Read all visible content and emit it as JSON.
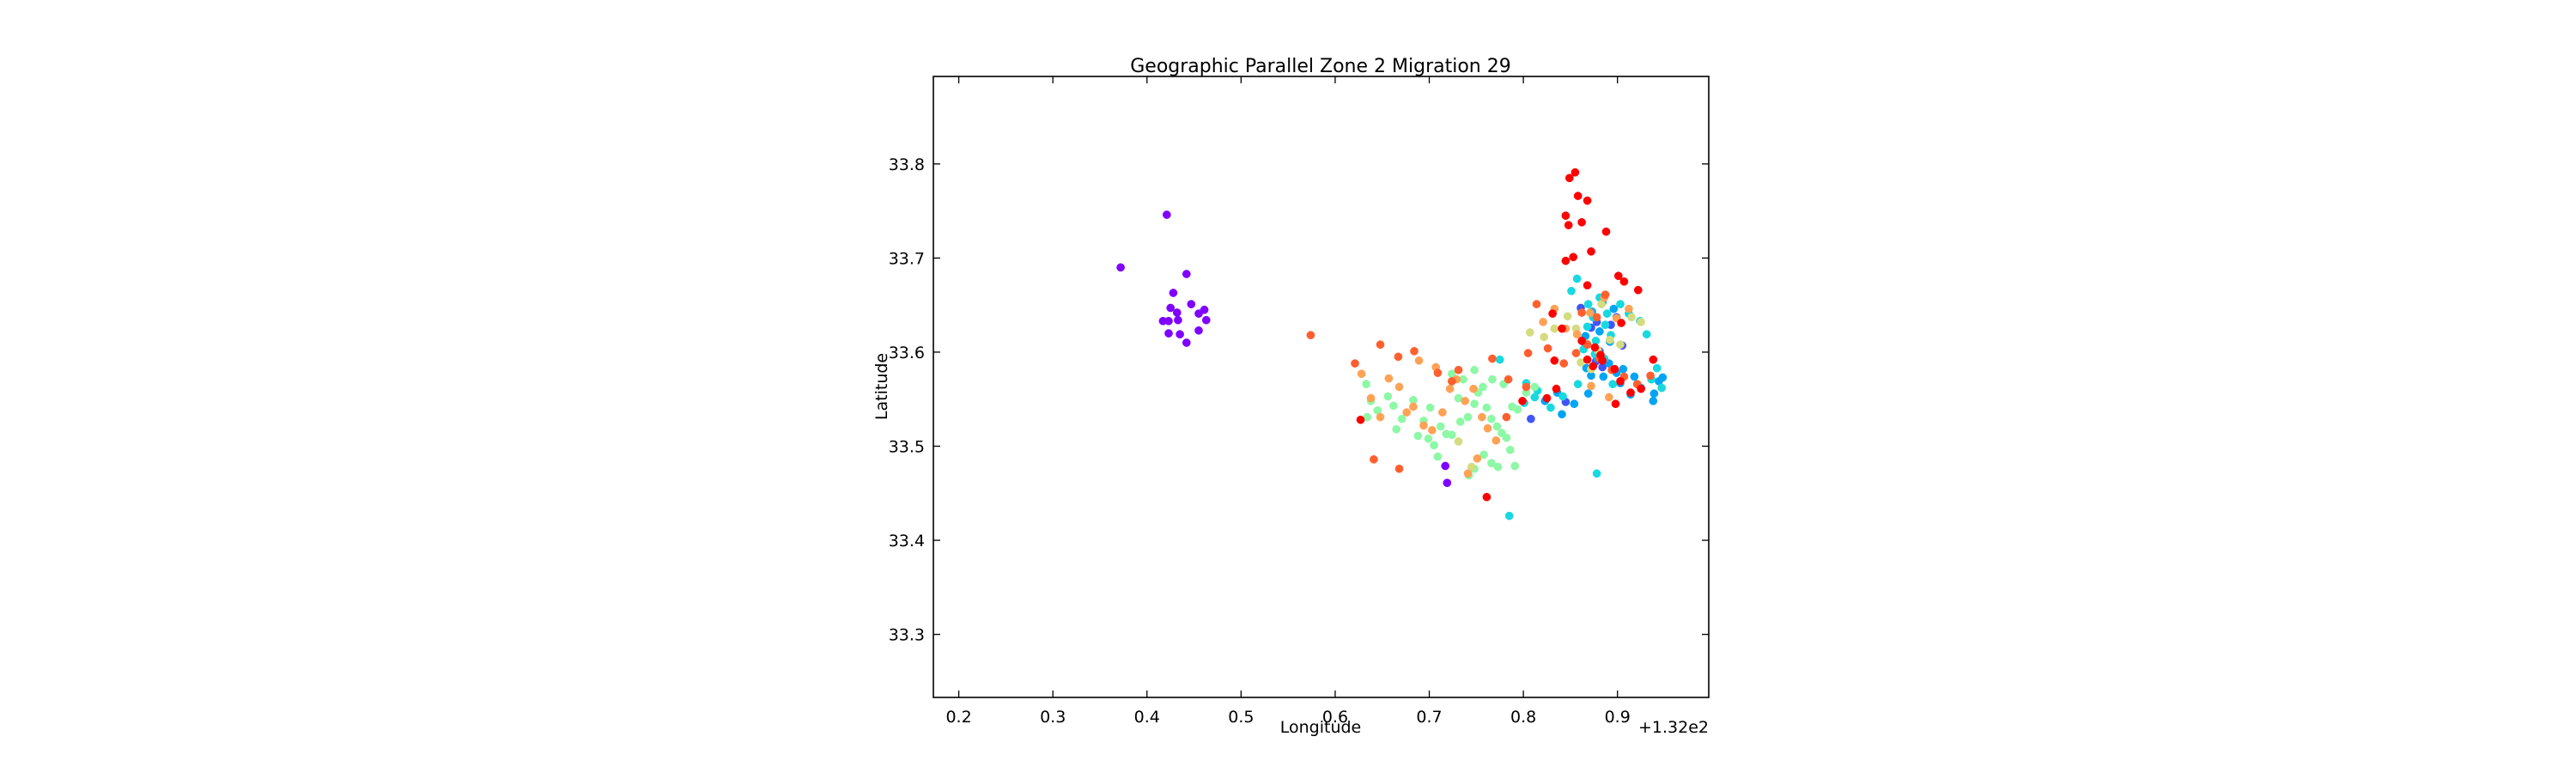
{
  "chart_data": {
    "type": "scatter",
    "title": "Geographic Parallel Zone 2 Migration 29",
    "xlabel": "Longitude",
    "ylabel": "Latitude",
    "x_offset_label": "+1.32e2",
    "xlim": [
      132.173,
      132.997
    ],
    "ylim": [
      33.233,
      33.893
    ],
    "x_ticks": [
      132.2,
      132.3,
      132.4,
      132.5,
      132.6,
      132.7,
      132.8,
      132.9
    ],
    "x_tick_labels": [
      "0.2",
      "0.3",
      "0.4",
      "0.5",
      "0.6",
      "0.7",
      "0.8",
      "0.9"
    ],
    "y_ticks": [
      33.3,
      33.4,
      33.5,
      33.6,
      33.7,
      33.8
    ],
    "y_tick_labels": [
      "33.3",
      "33.4",
      "33.5",
      "33.6",
      "33.7",
      "33.8"
    ],
    "grid": false,
    "legend": "none",
    "series": [
      {
        "color": "#7f00ff",
        "points": [
          [
            132.372,
            33.69
          ],
          [
            132.421,
            33.746
          ],
          [
            132.442,
            33.683
          ],
          [
            132.428,
            33.663
          ],
          [
            132.425,
            33.647
          ],
          [
            132.432,
            33.642
          ],
          [
            132.447,
            33.651
          ],
          [
            132.455,
            33.641
          ],
          [
            132.461,
            33.645
          ],
          [
            132.417,
            33.633
          ],
          [
            132.423,
            33.633
          ],
          [
            132.433,
            33.634
          ],
          [
            132.463,
            33.634
          ],
          [
            132.455,
            33.623
          ],
          [
            132.423,
            33.62
          ],
          [
            132.435,
            33.619
          ],
          [
            132.442,
            33.61
          ],
          [
            132.717,
            33.479
          ],
          [
            132.719,
            33.461
          ]
        ]
      },
      {
        "color": "#3f54f9",
        "points": [
          [
            132.808,
            33.529
          ],
          [
            132.845,
            33.547
          ],
          [
            132.864,
            33.611
          ],
          [
            132.872,
            33.626
          ],
          [
            132.877,
            33.59
          ],
          [
            132.884,
            33.584
          ],
          [
            132.893,
            33.629
          ],
          [
            132.899,
            33.637
          ],
          [
            132.905,
            33.607
          ],
          [
            132.861,
            33.647
          ],
          [
            132.878,
            33.632
          ],
          [
            132.881,
            33.601
          ]
        ]
      },
      {
        "color": "#00a4f4",
        "points": [
          [
            132.823,
            33.548
          ],
          [
            132.836,
            33.557
          ],
          [
            132.841,
            33.534
          ],
          [
            132.854,
            33.545
          ],
          [
            132.869,
            33.556
          ],
          [
            132.872,
            33.575
          ],
          [
            132.885,
            33.574
          ],
          [
            132.891,
            33.588
          ],
          [
            132.899,
            33.578
          ],
          [
            132.903,
            33.567
          ],
          [
            132.914,
            33.555
          ],
          [
            132.925,
            33.562
          ],
          [
            132.939,
            33.556
          ],
          [
            132.944,
            33.569
          ],
          [
            132.948,
            33.573
          ],
          [
            132.938,
            33.548
          ],
          [
            132.866,
            33.617
          ],
          [
            132.881,
            33.622
          ],
          [
            132.892,
            33.611
          ],
          [
            132.873,
            33.643
          ],
          [
            132.884,
            33.653
          ],
          [
            132.896,
            33.646
          ],
          [
            132.867,
            33.583
          ],
          [
            132.878,
            33.594
          ],
          [
            132.906,
            33.582
          ],
          [
            132.918,
            33.574
          ]
        ]
      },
      {
        "color": "#17d9df",
        "points": [
          [
            132.785,
            33.426
          ],
          [
            132.878,
            33.471
          ],
          [
            132.775,
            33.592
          ],
          [
            132.803,
            33.567
          ],
          [
            132.815,
            33.559
          ],
          [
            132.829,
            33.541
          ],
          [
            132.851,
            33.665
          ],
          [
            132.857,
            33.678
          ],
          [
            132.869,
            33.651
          ],
          [
            132.881,
            33.658
          ],
          [
            132.874,
            33.637
          ],
          [
            132.887,
            33.629
          ],
          [
            132.893,
            33.618
          ],
          [
            132.864,
            33.603
          ],
          [
            132.876,
            33.598
          ],
          [
            132.886,
            33.593
          ],
          [
            132.903,
            33.651
          ],
          [
            132.912,
            33.641
          ],
          [
            132.924,
            33.633
          ],
          [
            132.931,
            33.619
          ],
          [
            132.942,
            33.583
          ],
          [
            132.936,
            33.571
          ],
          [
            132.947,
            33.562
          ],
          [
            132.895,
            33.566
          ],
          [
            132.858,
            33.566
          ],
          [
            132.877,
            33.612
          ],
          [
            132.889,
            33.641
          ],
          [
            132.842,
            33.553
          ],
          [
            132.812,
            33.552
          ],
          [
            132.801,
            33.546
          ],
          [
            132.868,
            33.627
          ]
        ]
      },
      {
        "color": "#8df8a6",
        "points": [
          [
            132.633,
            33.566
          ],
          [
            132.638,
            33.548
          ],
          [
            132.645,
            33.538
          ],
          [
            132.656,
            33.553
          ],
          [
            132.662,
            33.543
          ],
          [
            132.671,
            33.529
          ],
          [
            132.683,
            33.549
          ],
          [
            132.694,
            33.527
          ],
          [
            132.699,
            33.508
          ],
          [
            132.705,
            33.501
          ],
          [
            132.712,
            33.521
          ],
          [
            132.718,
            33.513
          ],
          [
            132.724,
            33.512
          ],
          [
            132.733,
            33.526
          ],
          [
            132.741,
            33.531
          ],
          [
            132.748,
            33.545
          ],
          [
            132.752,
            33.557
          ],
          [
            132.761,
            33.541
          ],
          [
            132.766,
            33.529
          ],
          [
            132.772,
            33.521
          ],
          [
            132.777,
            33.514
          ],
          [
            132.782,
            33.509
          ],
          [
            132.786,
            33.496
          ],
          [
            132.773,
            33.478
          ],
          [
            132.766,
            33.482
          ],
          [
            132.758,
            33.491
          ],
          [
            132.748,
            33.476
          ],
          [
            132.742,
            33.469
          ],
          [
            132.724,
            33.577
          ],
          [
            132.736,
            33.571
          ],
          [
            132.748,
            33.581
          ],
          [
            132.757,
            33.563
          ],
          [
            132.767,
            33.571
          ],
          [
            132.779,
            33.566
          ],
          [
            132.788,
            33.542
          ],
          [
            132.794,
            33.539
          ],
          [
            132.803,
            33.557
          ],
          [
            132.812,
            33.563
          ],
          [
            132.731,
            33.551
          ],
          [
            132.701,
            33.541
          ],
          [
            132.688,
            33.511
          ],
          [
            132.709,
            33.489
          ],
          [
            132.791,
            33.479
          ],
          [
            132.665,
            33.518
          ],
          [
            132.634,
            33.531
          ]
        ]
      },
      {
        "color": "#d4dc7f",
        "points": [
          [
            132.731,
            33.505
          ],
          [
            132.745,
            33.478
          ],
          [
            132.807,
            33.621
          ],
          [
            132.822,
            33.616
          ],
          [
            132.833,
            33.625
          ],
          [
            132.847,
            33.638
          ],
          [
            132.856,
            33.625
          ],
          [
            132.868,
            33.609
          ],
          [
            132.879,
            33.602
          ],
          [
            132.892,
            33.613
          ],
          [
            132.903,
            33.608
          ],
          [
            132.915,
            33.637
          ],
          [
            132.925,
            33.632
          ],
          [
            132.861,
            33.589
          ],
          [
            132.872,
            33.582
          ],
          [
            132.883,
            33.651
          ]
        ]
      },
      {
        "color": "#ffa256",
        "points": [
          [
            132.628,
            33.577
          ],
          [
            132.638,
            33.551
          ],
          [
            132.648,
            33.531
          ],
          [
            132.657,
            33.572
          ],
          [
            132.668,
            33.563
          ],
          [
            132.676,
            33.536
          ],
          [
            132.683,
            33.542
          ],
          [
            132.694,
            33.522
          ],
          [
            132.703,
            33.517
          ],
          [
            132.714,
            33.536
          ],
          [
            132.722,
            33.561
          ],
          [
            132.729,
            33.571
          ],
          [
            132.738,
            33.548
          ],
          [
            132.747,
            33.561
          ],
          [
            132.756,
            33.531
          ],
          [
            132.762,
            33.519
          ],
          [
            132.771,
            33.506
          ],
          [
            132.751,
            33.487
          ],
          [
            132.741,
            33.471
          ],
          [
            132.821,
            33.632
          ],
          [
            132.833,
            33.646
          ],
          [
            132.845,
            33.625
          ],
          [
            132.857,
            33.619
          ],
          [
            132.871,
            33.642
          ],
          [
            132.886,
            33.658
          ],
          [
            132.899,
            33.636
          ],
          [
            132.912,
            33.646
          ],
          [
            132.872,
            33.564
          ],
          [
            132.891,
            33.552
          ],
          [
            132.689,
            33.591
          ],
          [
            132.707,
            33.584
          ]
        ]
      },
      {
        "color": "#ff5f2e",
        "points": [
          [
            132.574,
            33.618
          ],
          [
            132.621,
            33.588
          ],
          [
            132.648,
            33.608
          ],
          [
            132.667,
            33.595
          ],
          [
            132.684,
            33.601
          ],
          [
            132.641,
            33.486
          ],
          [
            132.668,
            33.476
          ],
          [
            132.709,
            33.578
          ],
          [
            132.731,
            33.581
          ],
          [
            132.767,
            33.593
          ],
          [
            132.784,
            33.571
          ],
          [
            132.805,
            33.599
          ],
          [
            132.814,
            33.651
          ],
          [
            132.826,
            33.604
          ],
          [
            132.843,
            33.588
          ],
          [
            132.856,
            33.599
          ],
          [
            132.868,
            33.608
          ],
          [
            132.881,
            33.593
          ],
          [
            132.894,
            33.581
          ],
          [
            132.907,
            33.574
          ],
          [
            132.921,
            33.566
          ],
          [
            132.935,
            33.575
          ],
          [
            132.862,
            33.642
          ],
          [
            132.878,
            33.637
          ],
          [
            132.887,
            33.661
          ],
          [
            132.724,
            33.569
          ],
          [
            132.782,
            33.531
          ],
          [
            132.803,
            33.563
          ]
        ]
      },
      {
        "color": "#ff0000",
        "points": [
          [
            132.855,
            33.791
          ],
          [
            132.849,
            33.785
          ],
          [
            132.858,
            33.766
          ],
          [
            132.868,
            33.761
          ],
          [
            132.845,
            33.745
          ],
          [
            132.848,
            33.735
          ],
          [
            132.862,
            33.738
          ],
          [
            132.888,
            33.728
          ],
          [
            132.872,
            33.707
          ],
          [
            132.845,
            33.697
          ],
          [
            132.853,
            33.701
          ],
          [
            132.901,
            33.681
          ],
          [
            132.907,
            33.675
          ],
          [
            132.922,
            33.666
          ],
          [
            132.868,
            33.671
          ],
          [
            132.831,
            33.641
          ],
          [
            132.841,
            33.625
          ],
          [
            132.862,
            33.612
          ],
          [
            132.876,
            33.605
          ],
          [
            132.882,
            33.597
          ],
          [
            132.868,
            33.592
          ],
          [
            132.874,
            33.585
          ],
          [
            132.884,
            33.591
          ],
          [
            132.897,
            33.582
          ],
          [
            132.903,
            33.569
          ],
          [
            132.914,
            33.557
          ],
          [
            132.925,
            33.561
          ],
          [
            132.938,
            33.592
          ],
          [
            132.835,
            33.561
          ],
          [
            132.825,
            33.551
          ],
          [
            132.799,
            33.548
          ],
          [
            132.833,
            33.591
          ],
          [
            132.898,
            33.545
          ],
          [
            132.761,
            33.446
          ],
          [
            132.627,
            33.528
          ],
          [
            132.904,
            33.631
          ]
        ]
      }
    ]
  }
}
